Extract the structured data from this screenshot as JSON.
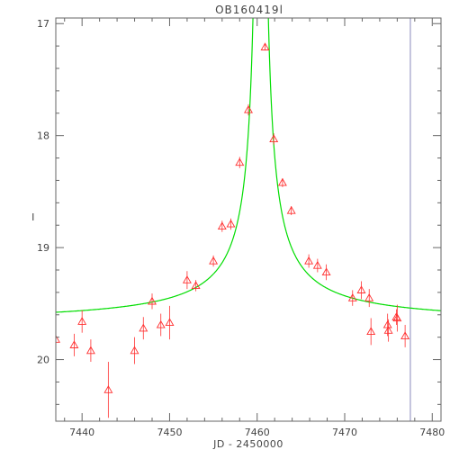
{
  "chart_data": {
    "type": "scatter",
    "title": "OB160419l",
    "xlabel": "JD - 2450000",
    "ylabel": "I",
    "xlim": [
      7437,
      7481
    ],
    "ylim": [
      20.55,
      16.95
    ],
    "y_inverted": true,
    "x_ticks": [
      7440,
      7450,
      7460,
      7470,
      7480
    ],
    "x_tick_labels": [
      "7440",
      "7450",
      "7460",
      "7470",
      "7480"
    ],
    "y_ticks": [
      17,
      18,
      19,
      20
    ],
    "y_tick_labels": [
      "17",
      "18",
      "19",
      "20"
    ],
    "grid": false,
    "legend": "none",
    "colors": {
      "data": "#ff3030",
      "model": "#00dd00",
      "marker_line": "#8888bb",
      "axes": "#666666",
      "text": "#444444"
    },
    "vertical_line": {
      "x": 7477.5
    },
    "model": {
      "name": "",
      "baseline": 19.68,
      "t0": 7460.4,
      "amplitude": 0.6,
      "tau": 4.0
    },
    "series": [
      {
        "name": "",
        "marker": "triangle",
        "points": [
          {
            "x": 7437.0,
            "y": 19.82,
            "err": 0.04
          },
          {
            "x": 7439.1,
            "y": 19.87,
            "err": 0.1
          },
          {
            "x": 7440.0,
            "y": 19.66,
            "err": 0.1
          },
          {
            "x": 7441.0,
            "y": 19.92,
            "err": 0.1
          },
          {
            "x": 7443.0,
            "y": 20.27,
            "err": 0.25
          },
          {
            "x": 7446.0,
            "y": 19.92,
            "err": 0.12
          },
          {
            "x": 7447.0,
            "y": 19.72,
            "err": 0.1
          },
          {
            "x": 7448.0,
            "y": 19.48,
            "err": 0.07
          },
          {
            "x": 7449.0,
            "y": 19.69,
            "err": 0.1
          },
          {
            "x": 7450.0,
            "y": 19.67,
            "err": 0.15
          },
          {
            "x": 7452.0,
            "y": 19.29,
            "err": 0.08
          },
          {
            "x": 7453.0,
            "y": 19.34,
            "err": 0.05
          },
          {
            "x": 7455.0,
            "y": 19.12,
            "err": 0.05
          },
          {
            "x": 7456.0,
            "y": 18.81,
            "err": 0.05
          },
          {
            "x": 7457.0,
            "y": 18.79,
            "err": 0.05
          },
          {
            "x": 7458.0,
            "y": 18.24,
            "err": 0.05
          },
          {
            "x": 7459.0,
            "y": 17.77,
            "err": 0.05
          },
          {
            "x": 7460.9,
            "y": 17.21,
            "err": 0.03
          },
          {
            "x": 7461.9,
            "y": 18.03,
            "err": 0.05
          },
          {
            "x": 7462.9,
            "y": 18.42,
            "err": 0.04
          },
          {
            "x": 7463.9,
            "y": 18.67,
            "err": 0.04
          },
          {
            "x": 7465.9,
            "y": 19.12,
            "err": 0.06
          },
          {
            "x": 7466.9,
            "y": 19.16,
            "err": 0.06
          },
          {
            "x": 7467.9,
            "y": 19.22,
            "err": 0.07
          },
          {
            "x": 7470.9,
            "y": 19.45,
            "err": 0.07
          },
          {
            "x": 7471.9,
            "y": 19.38,
            "err": 0.08
          },
          {
            "x": 7472.8,
            "y": 19.45,
            "err": 0.08
          },
          {
            "x": 7473.0,
            "y": 19.75,
            "err": 0.12
          },
          {
            "x": 7474.9,
            "y": 19.69,
            "err": 0.1
          },
          {
            "x": 7475.0,
            "y": 19.74,
            "err": 0.1
          },
          {
            "x": 7475.9,
            "y": 19.62,
            "err": 0.07
          },
          {
            "x": 7476.0,
            "y": 19.63,
            "err": 0.12
          },
          {
            "x": 7476.9,
            "y": 19.79,
            "err": 0.1
          }
        ]
      }
    ]
  }
}
